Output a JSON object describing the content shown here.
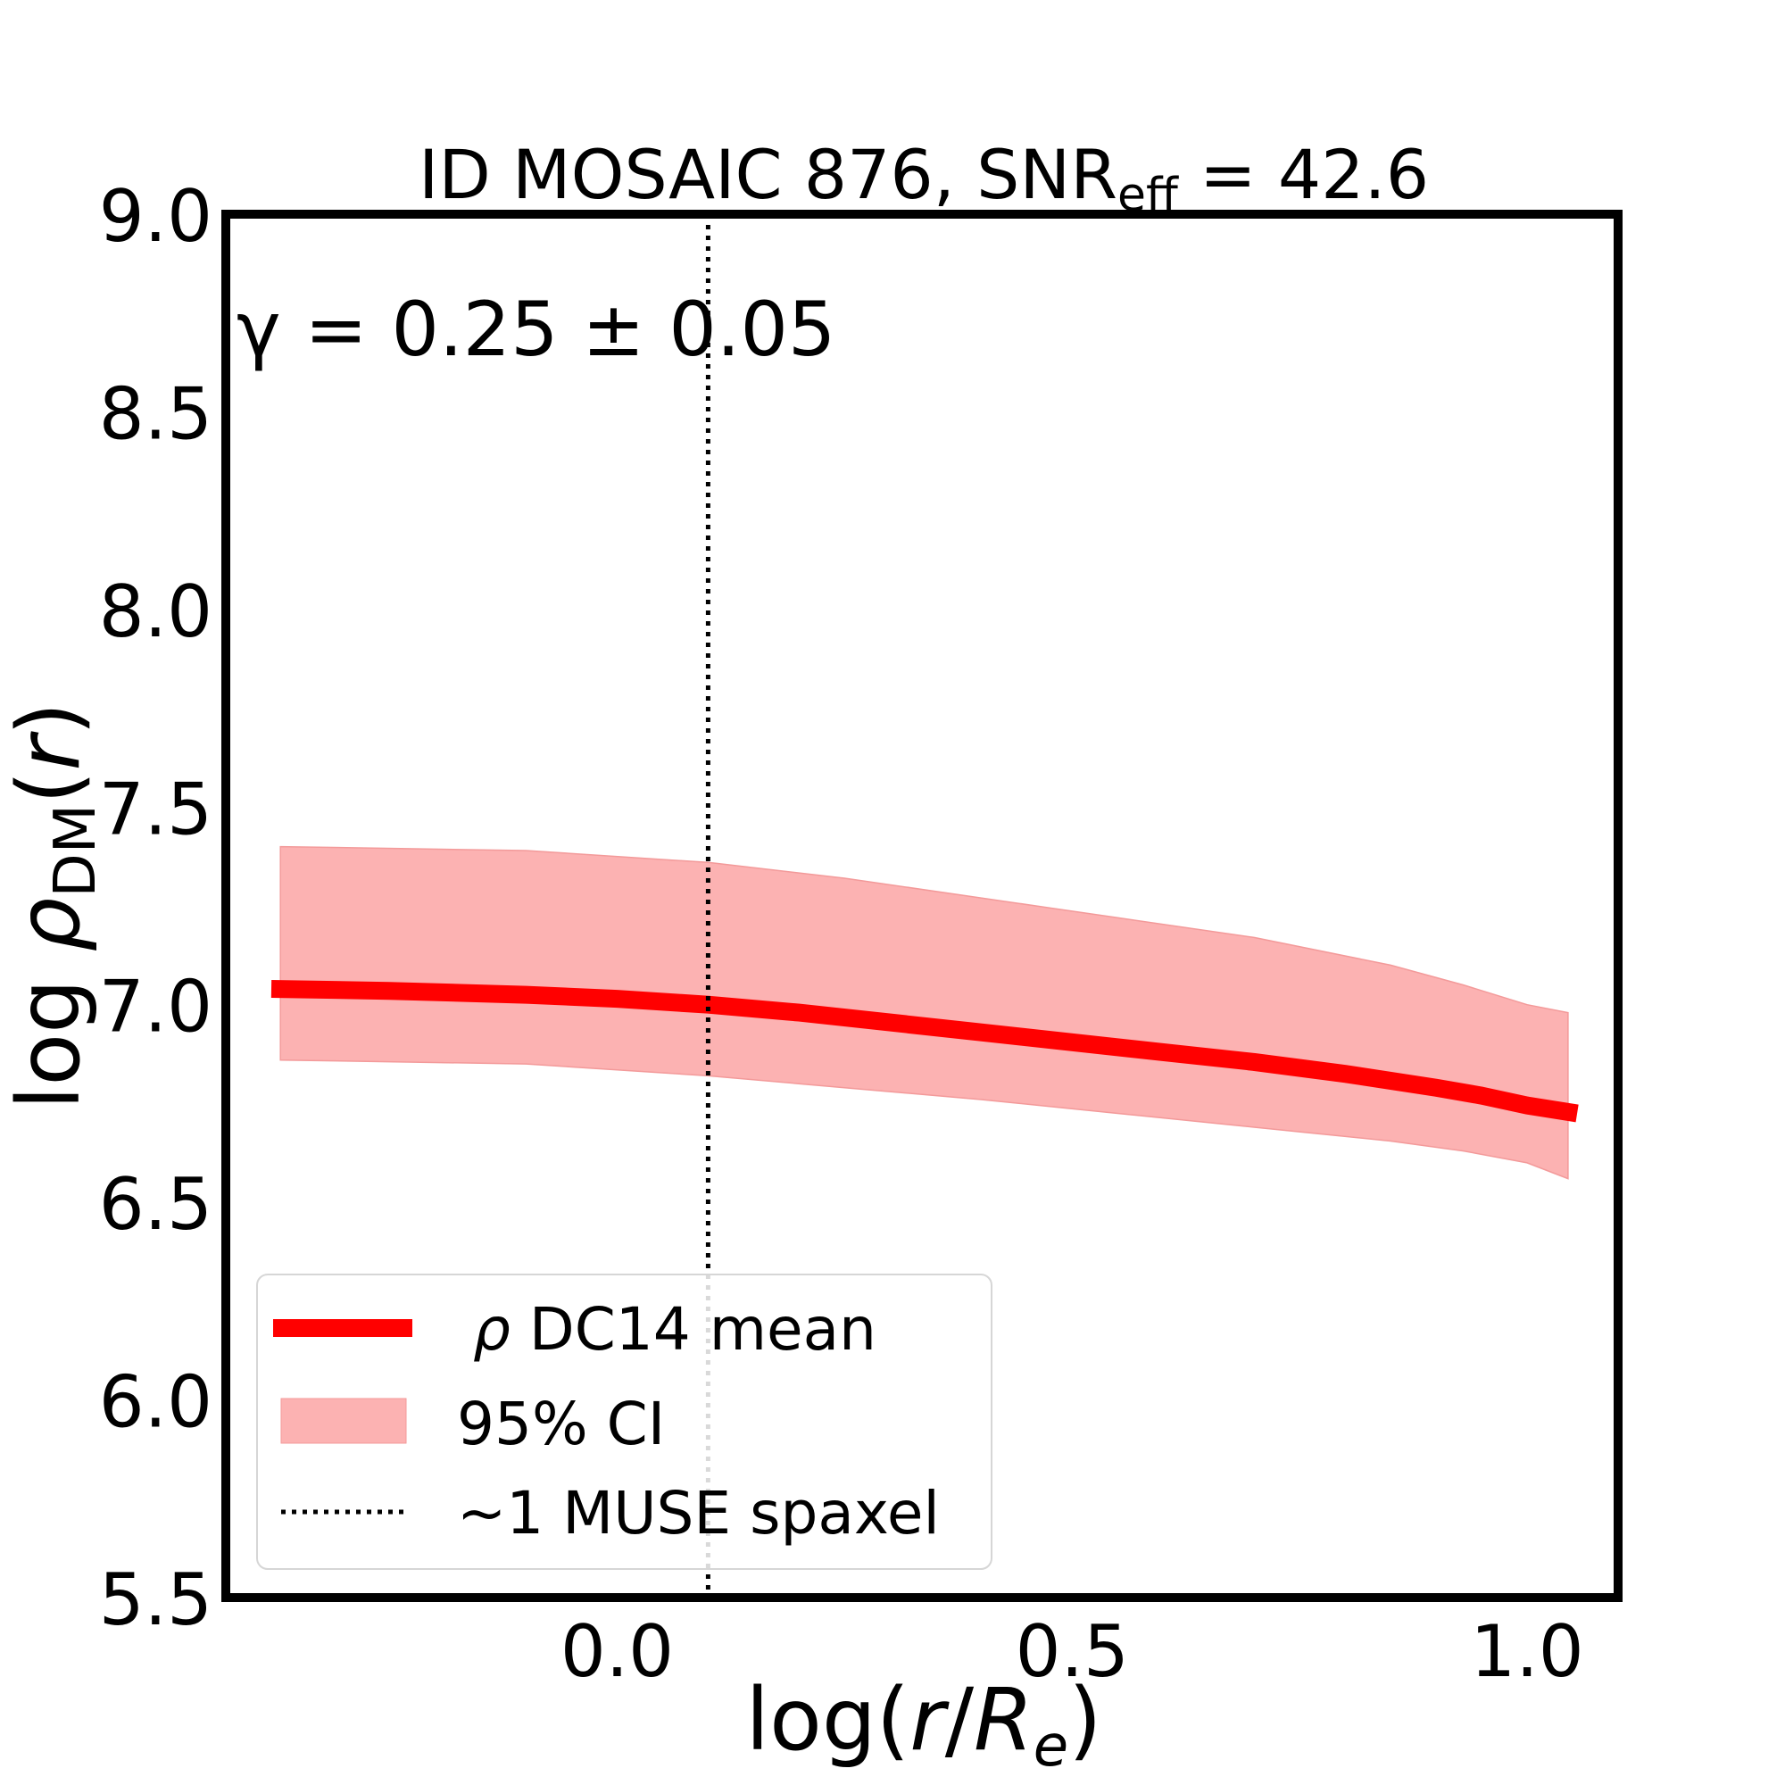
{
  "chart_data": {
    "type": "line",
    "title": {
      "prefix": "ID MOSAIC 876, SNR",
      "subscript": "eff",
      "suffix": " = 42.6"
    },
    "xlabel": {
      "prefix": "log(",
      "r": "r",
      "slash": "/",
      "R": "R",
      "sub": "e",
      "suffix": ")"
    },
    "ylabel": {
      "prefix": "log ",
      "rho": "ρ",
      "sub": "DM",
      "mid": "(",
      "r": "r",
      "suffix": ")"
    },
    "xlim": [
      -0.43,
      1.1
    ],
    "ylim": [
      5.5,
      9.0
    ],
    "xticks": [
      0.0,
      0.5,
      1.0
    ],
    "xtick_labels": [
      "0.0",
      "0.5",
      "1.0"
    ],
    "yticks": [
      5.5,
      6.0,
      6.5,
      7.0,
      7.5,
      8.0,
      8.5,
      9.0
    ],
    "ytick_labels": [
      "5.5",
      "6.0",
      "6.5",
      "7.0",
      "7.5",
      "8.0",
      "8.5",
      "9.0"
    ],
    "annotation": "γ = 0.25 ± 0.05",
    "series": [
      {
        "name": "ρ DC14 mean",
        "color": "#ff0000",
        "x": [
          -0.38,
          -0.25,
          -0.1,
          0.0,
          0.1,
          0.2,
          0.3,
          0.4,
          0.5,
          0.6,
          0.7,
          0.8,
          0.9,
          0.95,
          1.0,
          1.055
        ],
        "y": [
          7.04,
          7.035,
          7.025,
          7.015,
          7.0,
          6.98,
          6.955,
          6.93,
          6.905,
          6.88,
          6.855,
          6.825,
          6.79,
          6.77,
          6.745,
          6.725
        ]
      }
    ],
    "band": {
      "name": "95% CI",
      "color": "#fcb2b2",
      "x": [
        -0.37,
        -0.1,
        0.1,
        0.25,
        0.4,
        0.55,
        0.7,
        0.85,
        0.93,
        1.0,
        1.045
      ],
      "upper": [
        7.4,
        7.39,
        7.36,
        7.32,
        7.27,
        7.22,
        7.17,
        7.1,
        7.05,
        7.0,
        6.98
      ],
      "lower": [
        6.86,
        6.85,
        6.82,
        6.79,
        6.76,
        6.725,
        6.69,
        6.655,
        6.63,
        6.6,
        6.56
      ]
    },
    "vline": {
      "name": "~1 MUSE spaxel",
      "x": 0.1,
      "style": "dotted"
    },
    "legend": {
      "location": "lower-left",
      "entries": [
        "ρ DC14 mean",
        "95% CI",
        "~1 MUSE spaxel"
      ]
    }
  }
}
